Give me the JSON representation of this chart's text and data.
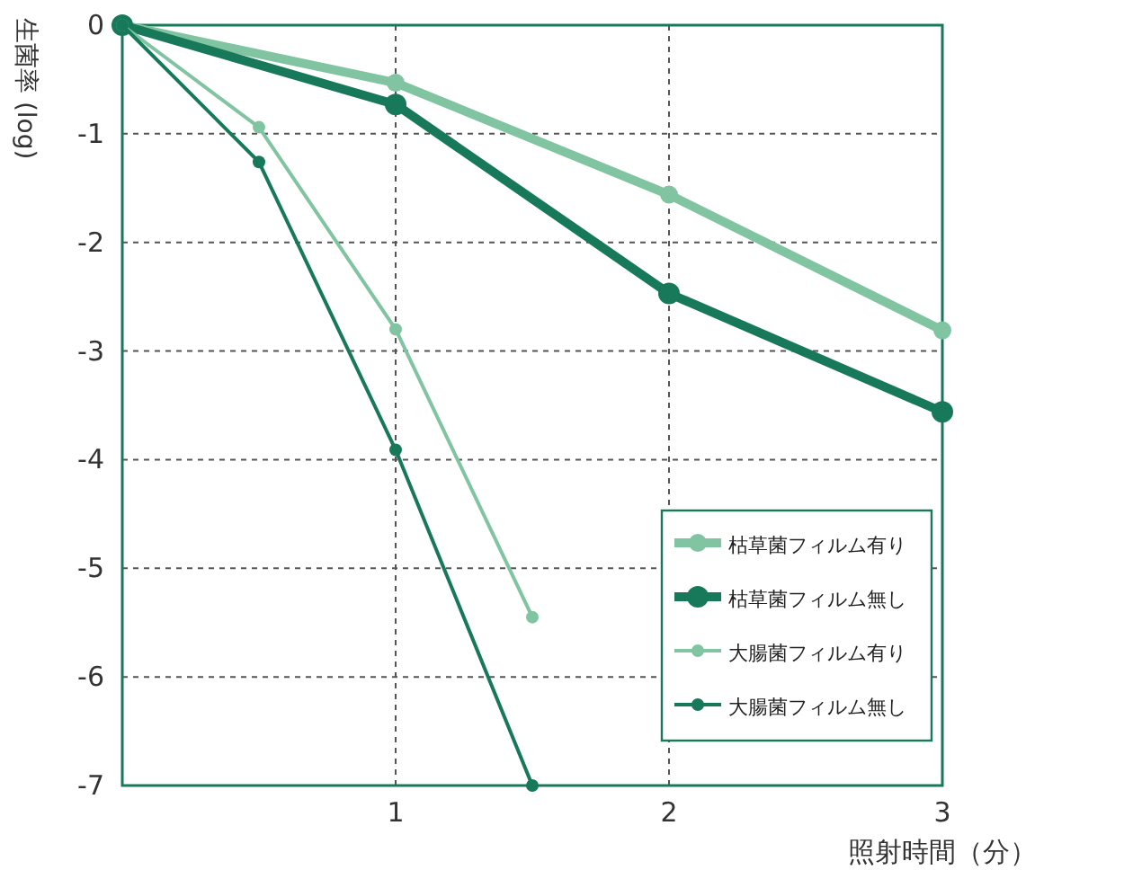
{
  "chart_data": {
    "type": "line",
    "xlabel": "照射時間（分）",
    "ylabel": "生菌率 (log)",
    "xlim": [
      0,
      3
    ],
    "ylim": [
      -7,
      0
    ],
    "xticks": [
      1,
      2,
      3
    ],
    "yticks": [
      0,
      -1,
      -2,
      -3,
      -4,
      -5,
      -6,
      -7
    ],
    "grid": true,
    "legend": "bottom right",
    "marker": "circle",
    "series": [
      {
        "name": "枯草菌フィルム有り",
        "color": "#80c4a2",
        "x": [
          0,
          1,
          2,
          3
        ],
        "values": [
          0,
          -0.53,
          -1.56,
          -2.81
        ]
      },
      {
        "name": "枯草菌フィルム無し",
        "color": "#17785a",
        "x": [
          0,
          1,
          2,
          3
        ],
        "values": [
          0,
          -0.73,
          -2.47,
          -3.56
        ]
      },
      {
        "name": "大腸菌フィルム有り",
        "color": "#80c4a2",
        "x": [
          0,
          0.5,
          1,
          1.5
        ],
        "values": [
          0,
          -0.94,
          -2.8,
          -5.45
        ]
      },
      {
        "name": "大腸菌フィルム無し",
        "color": "#17785a",
        "x": [
          0,
          0.5,
          1,
          1.5
        ],
        "values": [
          0,
          -1.26,
          -3.91,
          -7
        ]
      }
    ]
  }
}
